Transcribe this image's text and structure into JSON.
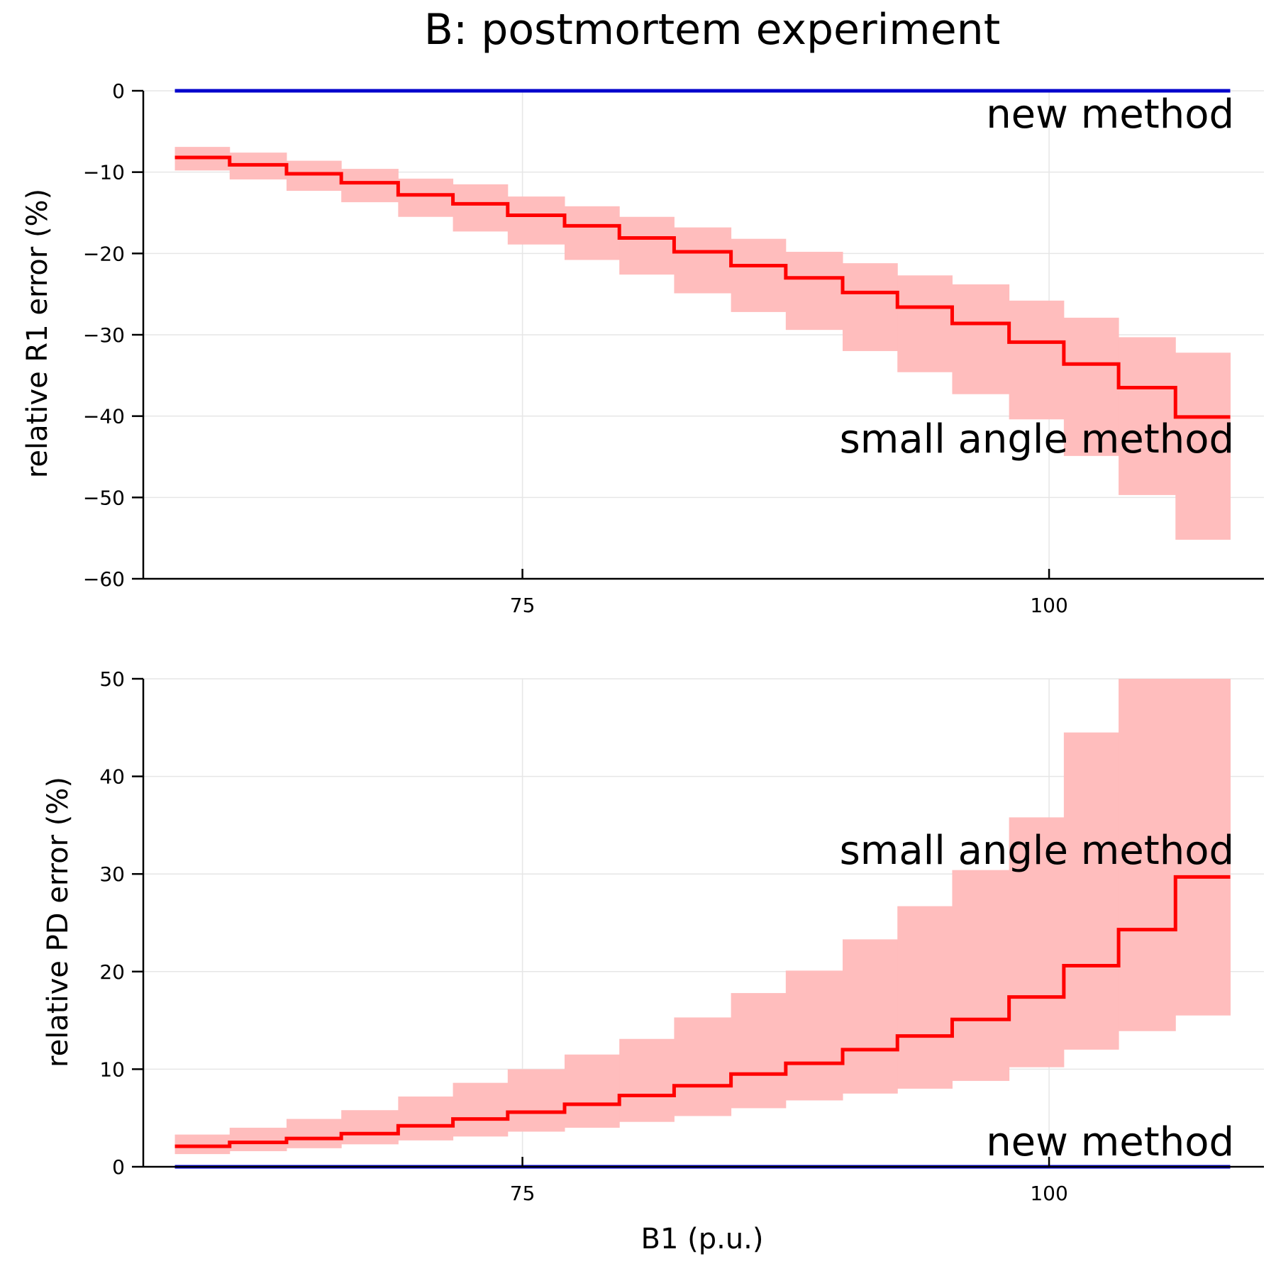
{
  "chart_data": {
    "title": "B: postmortem experiment",
    "xlabel": "B1 (p.u.)",
    "colors": {
      "small_angle": "#ff0000",
      "band": "#ffbdbd",
      "new_method": "#0000cc",
      "grid": "#e6e6e6"
    },
    "edges": [
      58.5,
      61.1,
      63.8,
      66.4,
      69.1,
      71.7,
      74.3,
      77.0,
      79.6,
      82.2,
      84.9,
      87.5,
      90.2,
      92.8,
      95.4,
      98.1,
      100.7,
      103.3,
      106.0,
      108.6
    ],
    "panels": [
      {
        "type": "line",
        "ylabel": "relative R1 error (%)",
        "ylim": [
          -60,
          0
        ],
        "yticks": [
          0,
          -10,
          -20,
          -30,
          -40,
          -50,
          -60
        ],
        "xticks": [
          75,
          100
        ],
        "xticklabels": [
          "75",
          "100"
        ],
        "grid": true,
        "series": [
          {
            "name": "small angle method",
            "style": "step",
            "values": [
              -8.2,
              -9.1,
              -10.2,
              -11.3,
              -12.8,
              -13.9,
              -15.3,
              -16.6,
              -18.1,
              -19.8,
              -21.5,
              -23.0,
              -24.8,
              -26.6,
              -28.6,
              -30.9,
              -33.6,
              -36.5,
              -40.1
            ],
            "lower": [
              -9.8,
              -10.9,
              -12.3,
              -13.7,
              -15.5,
              -17.3,
              -18.9,
              -20.8,
              -22.6,
              -24.9,
              -27.2,
              -29.4,
              -32.0,
              -34.6,
              -37.3,
              -40.4,
              -44.9,
              -49.7,
              -55.2
            ],
            "upper": [
              -6.9,
              -7.6,
              -8.6,
              -9.6,
              -10.8,
              -11.5,
              -13.0,
              -14.2,
              -15.5,
              -16.8,
              -18.2,
              -19.8,
              -21.2,
              -22.7,
              -23.8,
              -25.8,
              -27.9,
              -30.3,
              -32.2
            ]
          },
          {
            "name": "new method",
            "style": "line",
            "value": 0
          }
        ],
        "annotations": {
          "new_method": "new method",
          "small_angle": "small angle method"
        }
      },
      {
        "type": "line",
        "ylabel": "relative PD error (%)",
        "ylim": [
          0,
          50
        ],
        "yticks": [
          0,
          10,
          20,
          30,
          40,
          50
        ],
        "xticks": [
          75,
          100
        ],
        "xticklabels": [
          "75",
          "100"
        ],
        "grid": true,
        "series": [
          {
            "name": "small angle method",
            "style": "step",
            "values": [
              2.1,
              2.5,
              2.9,
              3.4,
              4.2,
              4.9,
              5.6,
              6.4,
              7.3,
              8.3,
              9.5,
              10.6,
              12.0,
              13.4,
              15.1,
              17.4,
              20.6,
              24.3,
              29.7
            ],
            "lower": [
              1.3,
              1.6,
              1.9,
              2.3,
              2.7,
              3.1,
              3.6,
              4.0,
              4.6,
              5.2,
              6.0,
              6.8,
              7.5,
              8.0,
              8.8,
              10.2,
              12.0,
              13.9,
              15.5
            ],
            "upper": [
              3.3,
              4.0,
              4.9,
              5.8,
              7.2,
              8.6,
              10.0,
              11.5,
              13.1,
              15.3,
              17.8,
              20.1,
              23.3,
              26.7,
              30.4,
              35.8,
              44.5,
              50,
              50
            ]
          },
          {
            "name": "new method",
            "style": "line",
            "value": 0
          }
        ],
        "annotations": {
          "small_angle": "small angle method",
          "new_method": "new method"
        }
      }
    ]
  }
}
